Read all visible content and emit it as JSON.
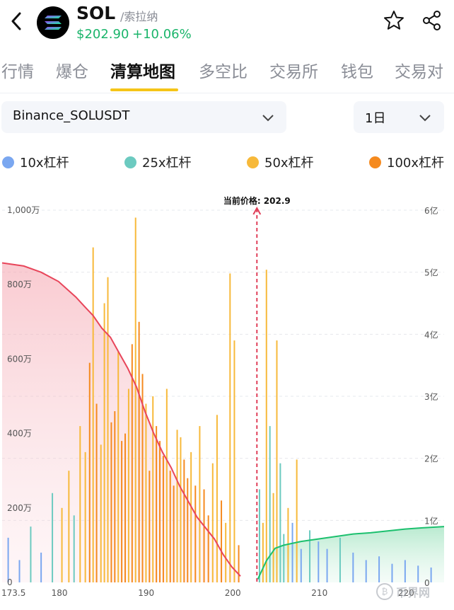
{
  "header": {
    "symbol": "SOL",
    "name": "/索拉纳",
    "price": "$202.90",
    "change": "+10.06%",
    "icons": [
      "back-arrow-icon",
      "solana-logo-icon",
      "star-icon",
      "share-icon"
    ],
    "accent_up": "#1bb56b"
  },
  "tabs": [
    "行情",
    "爆仓",
    "清算地图",
    "多空比",
    "交易所",
    "钱包",
    "交易对"
  ],
  "active_tab": 2,
  "selectors": {
    "pair": "Binance_SOLUSDT",
    "period": "1日"
  },
  "legend": [
    {
      "label": "10x杠杆",
      "color": "#7aa7f0"
    },
    {
      "label": "25x杠杆",
      "color": "#6ccac0"
    },
    {
      "label": "50x杠杆",
      "color": "#f7b93a"
    },
    {
      "label": "100x杠杆",
      "color": "#f58a1f"
    }
  ],
  "chart_data": {
    "type": "bar",
    "current_price_label": "当前价格: 202.9",
    "current_price": 202.9,
    "x_ticks": [
      "173.5",
      "180",
      "190",
      "200",
      "210",
      "220"
    ],
    "x_tick_values": [
      173.5,
      180,
      190,
      200,
      210,
      220
    ],
    "xlim": [
      173.5,
      224.5
    ],
    "y_left_ticks": [
      "1,000万",
      "800万",
      "600万",
      "400万",
      "200万",
      "0"
    ],
    "y_left_values": [
      1000,
      800,
      600,
      400,
      200,
      0
    ],
    "y_left_range": [
      0,
      1000
    ],
    "y_right_ticks": [
      "6亿",
      "5亿",
      "4亿",
      "3亿",
      "2亿",
      "1亿",
      "0"
    ],
    "y_right_values": [
      6,
      5,
      4,
      3,
      2,
      1,
      0
    ],
    "y_right_range": [
      0,
      6
    ],
    "colors": {
      "long_curve": "#e8455a",
      "short_curve": "#1cc06e",
      "price_line": "#e0405a",
      "grid": "#e6e8ec"
    },
    "cumulative_long": {
      "x": [
        173.5,
        176,
        178,
        180,
        182,
        183,
        184,
        185,
        186,
        187,
        188,
        189,
        190,
        191,
        192,
        193,
        194,
        195,
        196,
        198,
        199,
        200,
        201
      ],
      "y": [
        5.15,
        5.1,
        5.0,
        4.85,
        4.6,
        4.45,
        4.3,
        4.1,
        3.95,
        3.7,
        3.45,
        3.15,
        2.75,
        2.4,
        2.1,
        1.85,
        1.55,
        1.3,
        1.05,
        0.7,
        0.45,
        0.25,
        0.1
      ]
    },
    "cumulative_short": {
      "x": [
        203,
        204,
        205,
        206,
        208,
        210,
        212,
        214,
        216,
        218,
        220,
        222,
        224.5
      ],
      "y": [
        0.05,
        0.35,
        0.55,
        0.6,
        0.66,
        0.7,
        0.74,
        0.78,
        0.8,
        0.83,
        0.86,
        0.88,
        0.9
      ]
    },
    "bars": {
      "x": [
        174.2,
        175.5,
        176.8,
        178.0,
        179.3,
        180.4,
        181.2,
        181.8,
        182.5,
        183.1,
        183.6,
        184.0,
        184.4,
        184.9,
        185.3,
        185.7,
        186.1,
        186.5,
        186.9,
        187.3,
        187.7,
        188.1,
        188.5,
        188.9,
        189.3,
        189.7,
        190.1,
        190.5,
        190.9,
        191.3,
        191.7,
        192.1,
        192.5,
        192.9,
        193.3,
        193.7,
        194.1,
        194.5,
        194.9,
        195.3,
        195.8,
        196.3,
        196.8,
        197.3,
        197.8,
        198.3,
        198.8,
        199.3,
        199.8,
        200.3,
        200.8,
        203.2,
        203.6,
        204.0,
        204.4,
        204.8,
        205.2,
        205.6,
        206.0,
        206.5,
        207.0,
        207.5,
        208.0,
        209.0,
        210.0,
        211.0,
        212.5,
        214.0,
        215.5,
        217.0,
        218.5,
        220.0,
        221.5,
        223.0
      ],
      "values": [
        120,
        60,
        150,
        80,
        240,
        200,
        300,
        180,
        420,
        350,
        590,
        900,
        480,
        370,
        750,
        820,
        430,
        460,
        620,
        380,
        400,
        520,
        640,
        980,
        700,
        560,
        480,
        300,
        500,
        420,
        380,
        340,
        520,
        300,
        260,
        410,
        390,
        330,
        280,
        350,
        260,
        420,
        250,
        180,
        320,
        450,
        220,
        160,
        830,
        650,
        100,
        250,
        160,
        840,
        420,
        240,
        650,
        320,
        130,
        200,
        160,
        330,
        90,
        140,
        110,
        90,
        120,
        80,
        60,
        70,
        50,
        60,
        45,
        40
      ],
      "level": [
        "10x",
        "10x",
        "25x",
        "10x",
        "25x",
        "50x",
        "50x",
        "25x",
        "50x",
        "50x",
        "100x",
        "50x",
        "100x",
        "50x",
        "50x",
        "50x",
        "100x",
        "100x",
        "50x",
        "100x",
        "100x",
        "50x",
        "100x",
        "50x",
        "100x",
        "100x",
        "50x",
        "100x",
        "50x",
        "100x",
        "100x",
        "100x",
        "50x",
        "100x",
        "100x",
        "50x",
        "50x",
        "100x",
        "100x",
        "50x",
        "100x",
        "50x",
        "100x",
        "100x",
        "50x",
        "50x",
        "100x",
        "50x",
        "50x",
        "50x",
        "100x",
        "25x",
        "50x",
        "50x",
        "25x",
        "50x",
        "50x",
        "25x",
        "25x",
        "50x",
        "10x",
        "50x",
        "10x",
        "25x",
        "10x",
        "10x",
        "25x",
        "10x",
        "10x",
        "10x",
        "10x",
        "10x",
        "10x",
        "10x"
      ]
    }
  },
  "watermark": "币界网"
}
